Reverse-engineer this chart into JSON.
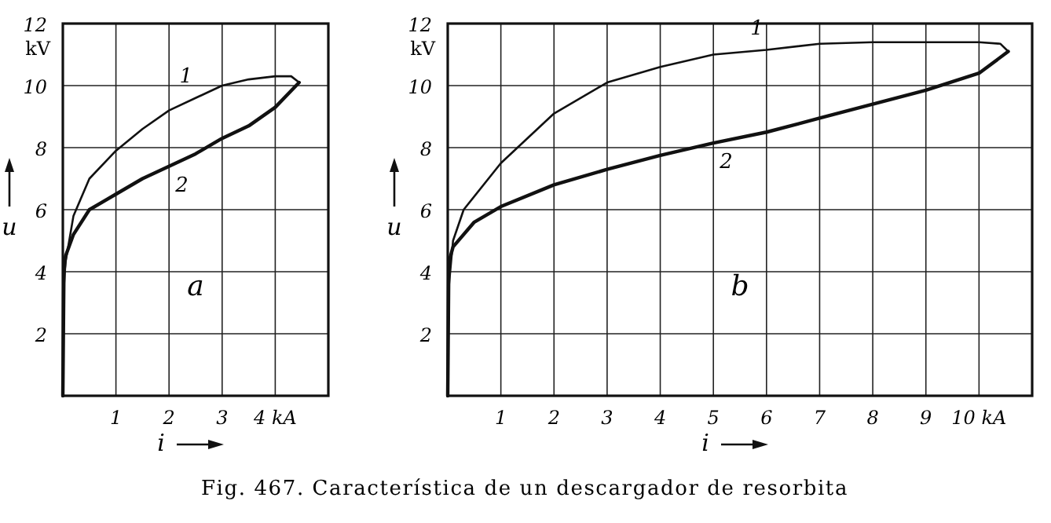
{
  "chart_data": [
    {
      "type": "line",
      "xlabel": "i",
      "ylabel": "u",
      "xlim": [
        0,
        5
      ],
      "ylim": [
        0,
        12
      ],
      "xticks": [
        1,
        2,
        3,
        {
          "value": 4,
          "label": "4 kA"
        }
      ],
      "yticks": [
        2,
        4,
        6,
        8,
        10,
        12
      ],
      "grid": true,
      "annotations": [
        "kV",
        "a"
      ],
      "series": [
        {
          "name": "1",
          "color": "#111111",
          "x": [
            0,
            0.02,
            0.05,
            0.2,
            0.5,
            1,
            1.5,
            2,
            2.5,
            3,
            3.5,
            4,
            4.3,
            4.45
          ],
          "values": [
            0,
            3.5,
            4.3,
            5.8,
            7,
            7.9,
            8.6,
            9.2,
            9.6,
            10,
            10.2,
            10.3,
            10.3,
            10.1
          ]
        },
        {
          "name": "2",
          "color": "#111111",
          "x": [
            4.45,
            4,
            3.5,
            3,
            2.5,
            2,
            1.5,
            1,
            0.5,
            0.2,
            0.05,
            0.02,
            0
          ],
          "values": [
            10.1,
            9.3,
            8.7,
            8.3,
            7.8,
            7.4,
            7,
            6.5,
            6,
            5.2,
            4.5,
            4,
            0
          ]
        }
      ]
    },
    {
      "type": "line",
      "xlabel": "i",
      "ylabel": "u",
      "xlim": [
        0,
        11
      ],
      "ylim": [
        0,
        12
      ],
      "xticks": [
        1,
        2,
        3,
        4,
        5,
        6,
        7,
        8,
        9,
        {
          "value": 10,
          "label": "10 kA"
        }
      ],
      "yticks": [
        2,
        4,
        6,
        8,
        10,
        12
      ],
      "grid": true,
      "annotations": [
        "kV",
        "b",
        "Fig. 467.  Característica de un descargador de resorbita"
      ],
      "series": [
        {
          "name": "1",
          "color": "#111111",
          "x": [
            0,
            0.02,
            0.1,
            0.3,
            1,
            2,
            3,
            4,
            5,
            6,
            7,
            8,
            9,
            10,
            10.4,
            10.55
          ],
          "values": [
            0,
            3.5,
            5,
            6,
            7.5,
            9.1,
            10.1,
            10.6,
            11,
            11.15,
            11.35,
            11.4,
            11.4,
            11.4,
            11.35,
            11.1
          ]
        },
        {
          "name": "2",
          "color": "#111111",
          "x": [
            10.55,
            10,
            9,
            8,
            7,
            6,
            5,
            4,
            3,
            2,
            1,
            0.5,
            0.1,
            0.02,
            0
          ],
          "values": [
            11.1,
            10.4,
            9.85,
            9.4,
            8.95,
            8.5,
            8.15,
            7.75,
            7.3,
            6.8,
            6.1,
            5.6,
            4.8,
            4.3,
            0
          ]
        }
      ]
    }
  ]
}
